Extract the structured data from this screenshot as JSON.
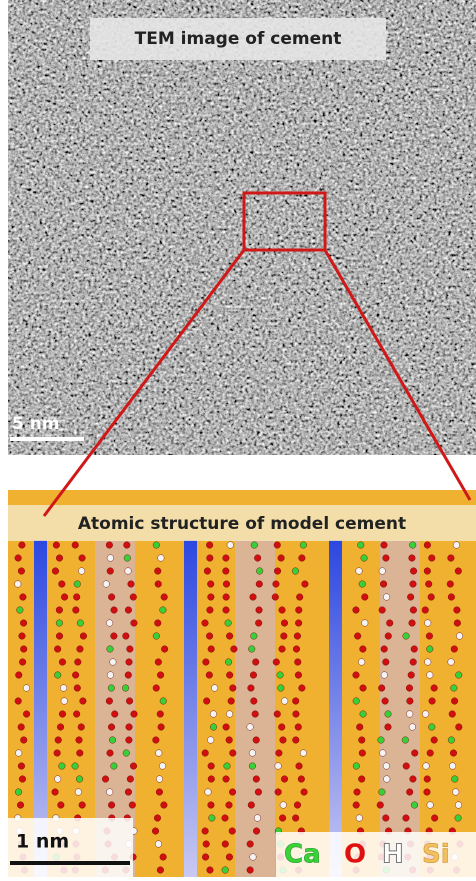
{
  "top_panel": {
    "title": "TEM image of cement",
    "scale_bar": "5 nm"
  },
  "bottom_panel": {
    "title": "Atomic structure of model cement",
    "scale_bar": "1 nm",
    "legend": [
      "Ca",
      "O",
      "H",
      "Si"
    ]
  }
}
